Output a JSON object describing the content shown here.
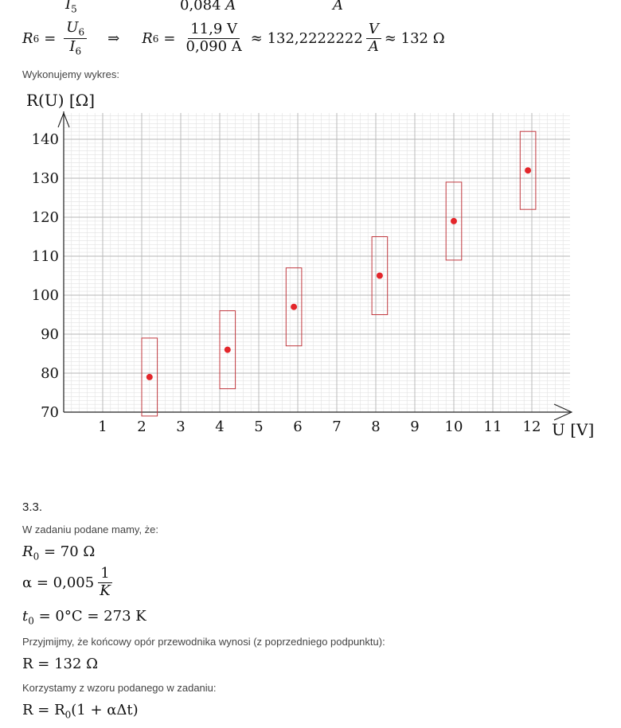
{
  "top_partial": {
    "left_sub": "I",
    "left_sub_idx": "5",
    "mid_value": "0,084",
    "mid_unit": "A",
    "right_unit": "A"
  },
  "r6_line": {
    "lhs": "R",
    "lhs_sub": "6",
    "eq": "=",
    "frac_num": "U",
    "frac_num_sub": "6",
    "frac_den": "I",
    "frac_den_sub": "6",
    "arrow": "⇒",
    "lhs2": "R",
    "lhs2_sub": "6",
    "eq2": "=",
    "num_val": "11,9 V",
    "den_val": "0,090 A",
    "approx1": "≈ 132,2222222",
    "unit_num": "V",
    "unit_den": "A",
    "approx2": "≈ 132 Ω"
  },
  "plot_intro": "Wykonujemy wykres:",
  "chart_data": {
    "type": "scatter",
    "ylabel": "R(U)  [Ω]",
    "xlabel": "U [V]",
    "xlim": [
      0,
      13
    ],
    "ylim": [
      70,
      146
    ],
    "x_ticks": [
      "1",
      "2",
      "3",
      "4",
      "5",
      "6",
      "7",
      "8",
      "9",
      "10",
      "11",
      "12"
    ],
    "y_ticks": [
      "70",
      "80",
      "90",
      "100",
      "110",
      "120",
      "130",
      "140"
    ],
    "grid": true,
    "points": [
      {
        "x": 2.2,
        "y": 79,
        "err_x": 0.2,
        "err_y": 10
      },
      {
        "x": 4.2,
        "y": 86,
        "err_x": 0.2,
        "err_y": 10
      },
      {
        "x": 5.9,
        "y": 97,
        "err_x": 0.2,
        "err_y": 10
      },
      {
        "x": 8.1,
        "y": 105,
        "err_x": 0.2,
        "err_y": 10
      },
      {
        "x": 10.0,
        "y": 119,
        "err_x": 0.2,
        "err_y": 10
      },
      {
        "x": 11.9,
        "y": 132,
        "err_x": 0.2,
        "err_y": 10
      }
    ],
    "point_color": "#e3262b",
    "box_color": "#c0393f"
  },
  "section_number": "3.3.",
  "given_intro": "W zadaniu podane mamy, że:",
  "r0_line": {
    "lhs": "R",
    "lhs_sub": "0",
    "rhs": "= 70 Ω"
  },
  "alpha_line": {
    "lhs": "α = 0,005",
    "num": "1",
    "den": "K"
  },
  "t0_line": {
    "lhs": "t",
    "lhs_sub": "0",
    "rhs": "= 0°C = 273 K"
  },
  "assume_text": "Przyjmijmy, że końcowy opór przewodnika wynosi (z poprzedniego podpunktu):",
  "r_line": {
    "text": "R = 132 Ω"
  },
  "formula_intro": "Korzystamy z wzoru podanego w zadaniu:",
  "formula_line": {
    "lhs": "R = R",
    "sub": "0",
    "rhs": "(1 + αΔt)"
  }
}
